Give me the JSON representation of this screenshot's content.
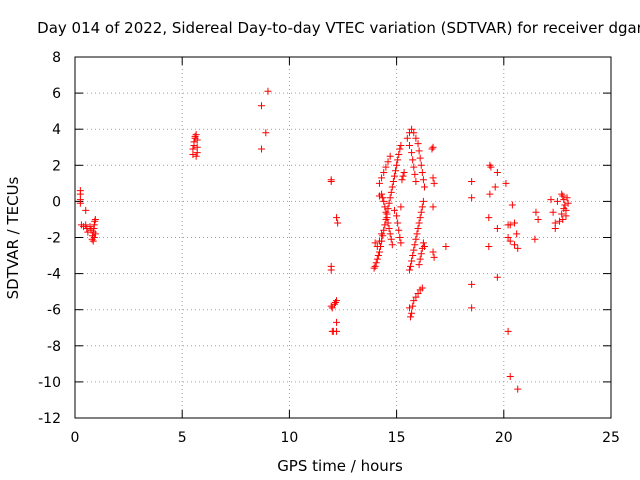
{
  "chart_data": {
    "type": "scatter",
    "title": "Day 014 of 2022, Sidereal Day-to-day VTEC variation (SDTVAR) for receiver dgar",
    "xlabel": "GPS time / hours",
    "ylabel": "SDTVAR / TECUs",
    "xlim": [
      0,
      25
    ],
    "ylim": [
      -12,
      8
    ],
    "xticks": [
      0,
      5,
      10,
      15,
      20,
      25
    ],
    "yticks": [
      -12,
      -10,
      -8,
      -6,
      -4,
      -2,
      0,
      2,
      4,
      6,
      8
    ],
    "x_tick_labels": [
      "0",
      "5",
      "10",
      "15",
      "20",
      "25"
    ],
    "y_tick_labels": [
      "-12",
      "-10",
      "-8",
      "-6",
      "-4",
      "-2",
      "0",
      "2",
      "4",
      "6",
      "8"
    ],
    "grid": true,
    "marker": "+",
    "series": [
      {
        "name": "SDTVAR",
        "color": "#ff0000",
        "points": [
          [
            0.25,
            0.6
          ],
          [
            0.25,
            0.4
          ],
          [
            0.25,
            0.1
          ],
          [
            0.25,
            -0.1
          ],
          [
            0.3,
            -1.3
          ],
          [
            0.4,
            -1.4
          ],
          [
            0.5,
            -1.3
          ],
          [
            0.5,
            -0.5
          ],
          [
            0.55,
            -1.5
          ],
          [
            0.6,
            -1.7
          ],
          [
            0.7,
            -1.4
          ],
          [
            0.75,
            -1.6
          ],
          [
            0.8,
            -2.1
          ],
          [
            0.82,
            -1.9
          ],
          [
            0.85,
            -1.7
          ],
          [
            0.88,
            -1.5
          ],
          [
            0.9,
            -1.3
          ],
          [
            0.92,
            -1.1
          ],
          [
            0.95,
            -1.0
          ],
          [
            0.85,
            -2.2
          ],
          [
            0.9,
            -2.0
          ],
          [
            0.95,
            -1.8
          ],
          [
            5.5,
            2.6
          ],
          [
            5.5,
            2.9
          ],
          [
            5.55,
            3.1
          ],
          [
            5.55,
            3.3
          ],
          [
            5.6,
            3.5
          ],
          [
            5.6,
            3.6
          ],
          [
            5.65,
            3.7
          ],
          [
            5.65,
            2.5
          ],
          [
            5.7,
            2.7
          ],
          [
            5.7,
            3.4
          ],
          [
            5.7,
            3.0
          ],
          [
            8.7,
            5.3
          ],
          [
            8.7,
            2.9
          ],
          [
            8.9,
            3.8
          ],
          [
            9.0,
            6.1
          ],
          [
            11.95,
            1.2
          ],
          [
            11.95,
            1.1
          ],
          [
            11.95,
            -3.6
          ],
          [
            11.95,
            -3.8
          ],
          [
            11.95,
            -5.8
          ],
          [
            12.0,
            -5.9
          ],
          [
            12.05,
            -7.2
          ],
          [
            12.0,
            -7.2
          ],
          [
            12.1,
            -5.7
          ],
          [
            12.15,
            -5.6
          ],
          [
            12.2,
            -5.5
          ],
          [
            12.2,
            -6.7
          ],
          [
            12.2,
            -7.2
          ],
          [
            12.2,
            -0.9
          ],
          [
            12.25,
            -1.2
          ],
          [
            13.95,
            -3.7
          ],
          [
            14.0,
            -3.6
          ],
          [
            14.05,
            -3.4
          ],
          [
            14.1,
            -3.2
          ],
          [
            14.15,
            -3.0
          ],
          [
            14.2,
            -2.8
          ],
          [
            14.25,
            -2.5
          ],
          [
            14.3,
            -2.2
          ],
          [
            14.35,
            -1.9
          ],
          [
            14.4,
            -1.6
          ],
          [
            14.45,
            -1.3
          ],
          [
            14.5,
            -1.0
          ],
          [
            14.55,
            -0.7
          ],
          [
            14.6,
            -0.4
          ],
          [
            14.65,
            -0.1
          ],
          [
            14.7,
            0.2
          ],
          [
            14.75,
            0.5
          ],
          [
            14.8,
            0.8
          ],
          [
            14.85,
            1.1
          ],
          [
            14.9,
            1.4
          ],
          [
            14.95,
            1.7
          ],
          [
            15.0,
            2.0
          ],
          [
            15.05,
            2.3
          ],
          [
            15.1,
            2.6
          ],
          [
            15.15,
            2.9
          ],
          [
            15.2,
            3.1
          ],
          [
            14.2,
            0.3
          ],
          [
            14.3,
            0.4
          ],
          [
            14.35,
            0.2
          ],
          [
            14.4,
            0.0
          ],
          [
            14.45,
            -0.3
          ],
          [
            14.5,
            -0.6
          ],
          [
            14.55,
            -0.9
          ],
          [
            14.6,
            -1.2
          ],
          [
            14.65,
            -1.5
          ],
          [
            14.7,
            -1.8
          ],
          [
            14.75,
            -2.1
          ],
          [
            14.8,
            -2.4
          ],
          [
            14.2,
            1.0
          ],
          [
            14.3,
            1.3
          ],
          [
            14.4,
            1.6
          ],
          [
            14.5,
            1.9
          ],
          [
            14.6,
            2.2
          ],
          [
            14.7,
            2.5
          ],
          [
            14.0,
            -2.3
          ],
          [
            14.1,
            -2.5
          ],
          [
            14.2,
            -2.2
          ],
          [
            14.3,
            -1.8
          ],
          [
            14.9,
            -0.5
          ],
          [
            15.0,
            -0.8
          ],
          [
            15.05,
            -1.2
          ],
          [
            15.1,
            -1.6
          ],
          [
            15.15,
            -2.0
          ],
          [
            15.2,
            -2.3
          ],
          [
            15.2,
            -0.3
          ],
          [
            15.25,
            1.2
          ],
          [
            15.3,
            1.4
          ],
          [
            15.35,
            1.6
          ],
          [
            15.5,
            3.5
          ],
          [
            15.6,
            3.8
          ],
          [
            15.7,
            4.0
          ],
          [
            15.8,
            3.8
          ],
          [
            15.9,
            3.5
          ],
          [
            16.0,
            3.2
          ],
          [
            16.05,
            2.8
          ],
          [
            16.1,
            2.4
          ],
          [
            16.15,
            2.0
          ],
          [
            16.2,
            1.6
          ],
          [
            16.25,
            1.2
          ],
          [
            16.3,
            0.8
          ],
          [
            15.6,
            -3.8
          ],
          [
            15.65,
            -3.6
          ],
          [
            15.7,
            -3.3
          ],
          [
            15.75,
            -3.0
          ],
          [
            15.8,
            -2.7
          ],
          [
            15.85,
            -2.4
          ],
          [
            15.9,
            -2.1
          ],
          [
            15.95,
            -1.8
          ],
          [
            16.0,
            -1.5
          ],
          [
            16.05,
            -1.2
          ],
          [
            16.1,
            -0.9
          ],
          [
            16.15,
            -0.6
          ],
          [
            16.2,
            -0.3
          ],
          [
            16.25,
            0.0
          ],
          [
            15.6,
            3.1
          ],
          [
            15.7,
            2.7
          ],
          [
            15.75,
            2.3
          ],
          [
            15.8,
            1.9
          ],
          [
            15.85,
            1.5
          ],
          [
            15.9,
            1.1
          ],
          [
            15.6,
            -5.9
          ],
          [
            15.65,
            -6.4
          ],
          [
            15.7,
            -6.2
          ],
          [
            15.75,
            -5.8
          ],
          [
            15.8,
            -5.5
          ],
          [
            15.9,
            -5.3
          ],
          [
            16.0,
            -5.1
          ],
          [
            16.1,
            -4.9
          ],
          [
            16.2,
            -4.8
          ],
          [
            16.05,
            -3.5
          ],
          [
            16.1,
            -3.2
          ],
          [
            16.15,
            -2.9
          ],
          [
            16.2,
            -2.6
          ],
          [
            16.25,
            -2.3
          ],
          [
            16.3,
            -2.5
          ],
          [
            16.65,
            2.9
          ],
          [
            16.7,
            3.0
          ],
          [
            16.7,
            1.3
          ],
          [
            16.75,
            1.0
          ],
          [
            16.7,
            -2.8
          ],
          [
            16.75,
            -3.1
          ],
          [
            16.7,
            -0.3
          ],
          [
            17.3,
            -2.5
          ],
          [
            18.5,
            1.1
          ],
          [
            18.5,
            0.2
          ],
          [
            18.5,
            -4.6
          ],
          [
            18.5,
            -5.9
          ],
          [
            19.3,
            -0.9
          ],
          [
            19.35,
            0.4
          ],
          [
            19.35,
            2.0
          ],
          [
            19.4,
            1.9
          ],
          [
            19.3,
            -2.5
          ],
          [
            19.6,
            0.8
          ],
          [
            19.7,
            1.6
          ],
          [
            19.7,
            -1.5
          ],
          [
            19.7,
            -4.2
          ],
          [
            20.1,
            1.0
          ],
          [
            20.2,
            -1.3
          ],
          [
            20.2,
            -2.0
          ],
          [
            20.3,
            -1.3
          ],
          [
            20.3,
            -2.2
          ],
          [
            20.2,
            -7.2
          ],
          [
            20.3,
            -9.7
          ],
          [
            20.4,
            -0.2
          ],
          [
            20.5,
            -1.2
          ],
          [
            20.5,
            -2.4
          ],
          [
            20.6,
            -1.8
          ],
          [
            20.65,
            -2.6
          ],
          [
            20.65,
            -10.4
          ],
          [
            21.45,
            -2.1
          ],
          [
            21.5,
            -0.6
          ],
          [
            21.6,
            -1.0
          ],
          [
            22.2,
            0.1
          ],
          [
            22.3,
            -0.6
          ],
          [
            22.4,
            -1.5
          ],
          [
            22.4,
            -1.2
          ],
          [
            22.5,
            0.0
          ],
          [
            22.6,
            -1.1
          ],
          [
            22.7,
            0.4
          ],
          [
            22.75,
            0.3
          ],
          [
            22.8,
            0.1
          ],
          [
            22.85,
            -0.2
          ],
          [
            22.9,
            -0.5
          ],
          [
            22.9,
            -0.8
          ],
          [
            22.95,
            0.2
          ],
          [
            23.0,
            -0.1
          ],
          [
            22.8,
            -0.4
          ],
          [
            22.7,
            -0.7
          ],
          [
            22.75,
            -1.0
          ]
        ]
      }
    ]
  }
}
